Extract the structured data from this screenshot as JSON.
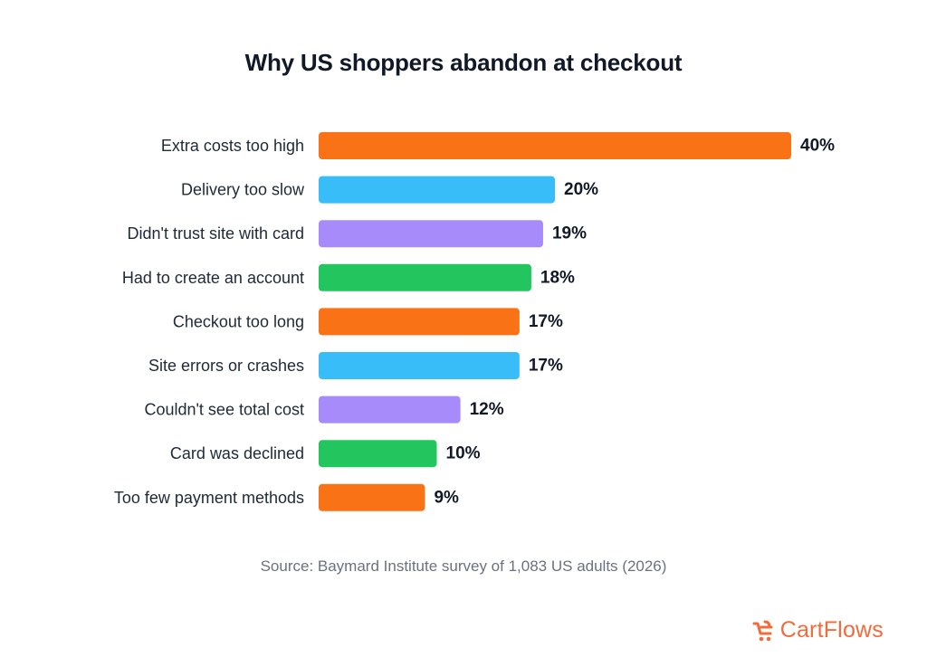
{
  "chart_data": {
    "type": "bar",
    "orientation": "horizontal",
    "title": "Why US shoppers abandon at checkout",
    "categories": [
      "Extra costs too high",
      "Delivery too slow",
      "Didn't trust site with card",
      "Had to create an account",
      "Checkout too long",
      "Site errors or crashes",
      "Couldn't see total cost",
      "Card was declined",
      "Too few payment methods"
    ],
    "values": [
      40,
      20,
      19,
      18,
      17,
      17,
      12,
      10,
      9
    ],
    "value_labels": [
      "40%",
      "20%",
      "19%",
      "18%",
      "17%",
      "17%",
      "12%",
      "10%",
      "9%"
    ],
    "colors": [
      "#f97316",
      "#38bdf8",
      "#a78bfa",
      "#22c55e",
      "#f97316",
      "#38bdf8",
      "#a78bfa",
      "#22c55e",
      "#f97316"
    ],
    "xlim": [
      0,
      40
    ],
    "grid": false,
    "legend": "none",
    "xlabel": "",
    "ylabel": ""
  },
  "footer": {
    "source": "Source: Baymard Institute survey of 1,083 US adults (2026)"
  },
  "brand": {
    "name": "CartFlows",
    "icon": "cartflows-logo-icon",
    "color": "#f26b3a"
  }
}
